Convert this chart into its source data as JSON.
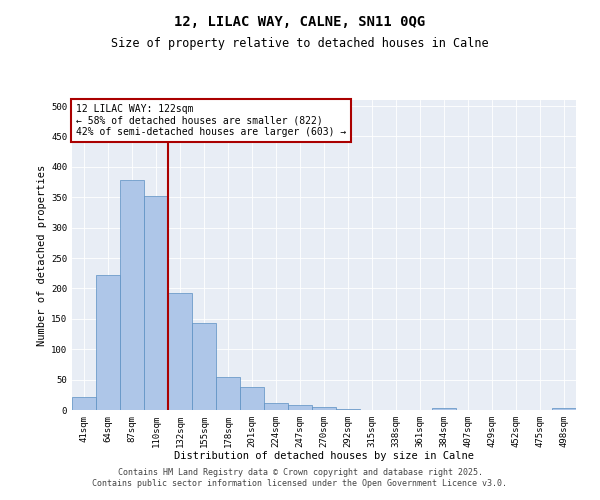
{
  "title": "12, LILAC WAY, CALNE, SN11 0QG",
  "subtitle": "Size of property relative to detached houses in Calne",
  "xlabel": "Distribution of detached houses by size in Calne",
  "ylabel": "Number of detached properties",
  "categories": [
    "41sqm",
    "64sqm",
    "87sqm",
    "110sqm",
    "132sqm",
    "155sqm",
    "178sqm",
    "201sqm",
    "224sqm",
    "247sqm",
    "270sqm",
    "292sqm",
    "315sqm",
    "338sqm",
    "361sqm",
    "384sqm",
    "407sqm",
    "429sqm",
    "452sqm",
    "475sqm",
    "498sqm"
  ],
  "values": [
    22,
    222,
    378,
    352,
    192,
    143,
    55,
    38,
    11,
    9,
    5,
    2,
    0,
    0,
    0,
    4,
    0,
    0,
    0,
    0,
    3
  ],
  "bar_color": "#aec6e8",
  "bar_edge_color": "#5a8fc2",
  "vline_x": 3.5,
  "vline_color": "#aa0000",
  "annotation_title": "12 LILAC WAY: 122sqm",
  "annotation_line1": "← 58% of detached houses are smaller (822)",
  "annotation_line2": "42% of semi-detached houses are larger (603) →",
  "annotation_box_color": "#aa0000",
  "ylim": [
    0,
    510
  ],
  "yticks": [
    0,
    50,
    100,
    150,
    200,
    250,
    300,
    350,
    400,
    450,
    500
  ],
  "background_color": "#e8edf5",
  "footer_line1": "Contains HM Land Registry data © Crown copyright and database right 2025.",
  "footer_line2": "Contains public sector information licensed under the Open Government Licence v3.0.",
  "title_fontsize": 10,
  "subtitle_fontsize": 8.5,
  "axis_label_fontsize": 7.5,
  "tick_fontsize": 6.5,
  "annotation_fontsize": 7,
  "footer_fontsize": 6
}
